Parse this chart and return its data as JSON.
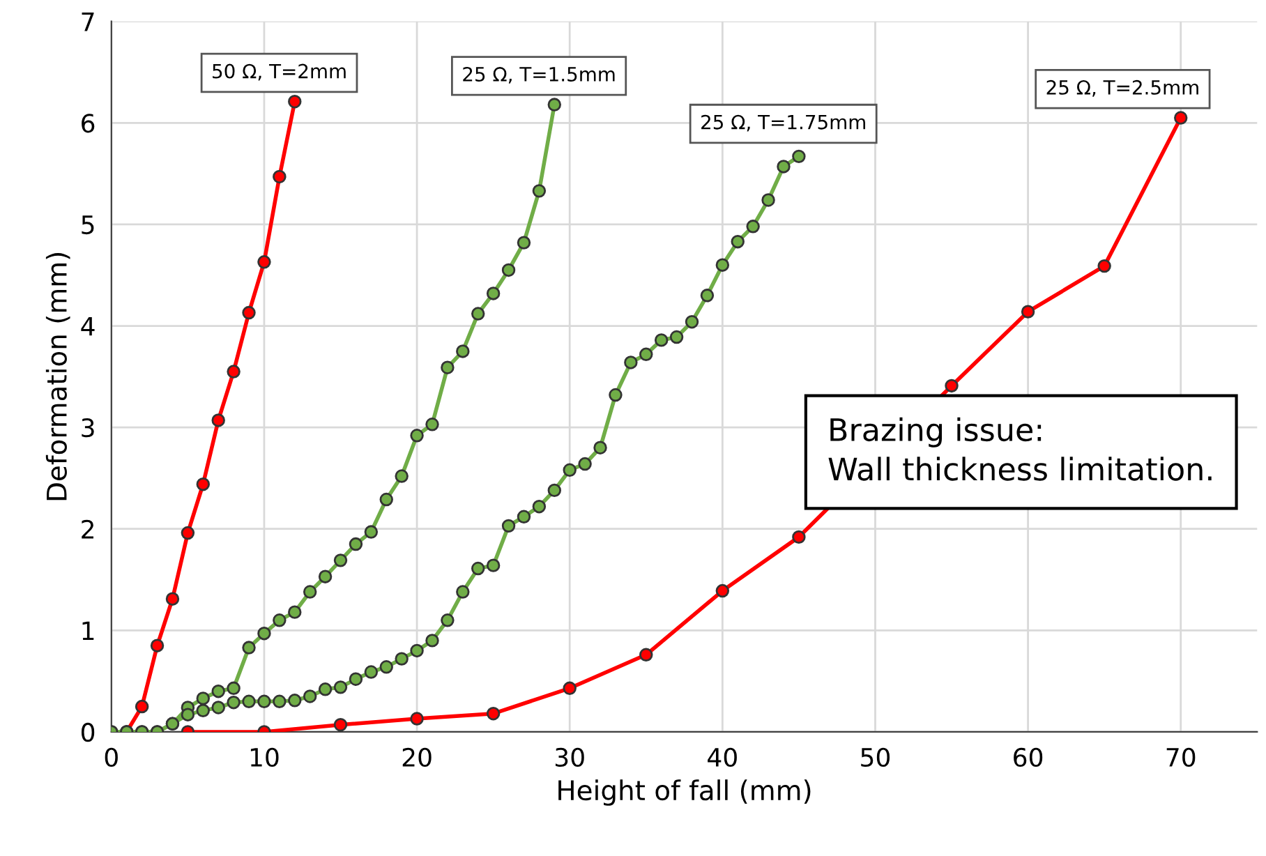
{
  "chart_data": {
    "type": "line",
    "xlabel": "Height of fall (mm)",
    "ylabel": "Deformation (mm)",
    "xlim": [
      0,
      75
    ],
    "ylim": [
      0,
      7
    ],
    "xticks": [
      0,
      10,
      20,
      30,
      40,
      50,
      60,
      70
    ],
    "yticks": [
      0,
      1,
      2,
      3,
      4,
      5,
      6,
      7
    ],
    "grid": true,
    "legend": false,
    "marker": "circle",
    "line_style": "solid",
    "series": [
      {
        "name": "50 Ω, T=2mm",
        "color": "#ff0000",
        "x": [
          1,
          2,
          3,
          4,
          5,
          6,
          7,
          8,
          9,
          10,
          11,
          12
        ],
        "values": [
          0,
          0.25,
          0.85,
          1.31,
          1.96,
          2.44,
          3.07,
          3.55,
          4.13,
          4.63,
          5.47,
          6.21
        ]
      },
      {
        "name": "25 Ω, T=1.5mm",
        "color": "#70ad47",
        "x": [
          0,
          1,
          2,
          3,
          4,
          5,
          6,
          7,
          8,
          9,
          10,
          11,
          12,
          13,
          14,
          15,
          16,
          17,
          18,
          19,
          20,
          21,
          22,
          23,
          24,
          25,
          26,
          27,
          28,
          29
        ],
        "values": [
          0,
          0,
          0,
          0,
          0.08,
          0.24,
          0.33,
          0.4,
          0.43,
          0.83,
          0.97,
          1.1,
          1.18,
          1.38,
          1.53,
          1.69,
          1.85,
          1.97,
          2.29,
          2.52,
          2.92,
          3.03,
          3.59,
          3.75,
          4.12,
          4.32,
          4.55,
          4.82,
          5.33,
          6.18
        ]
      },
      {
        "name": "25 Ω, T=1.75mm",
        "color": "#70ad47",
        "x": [
          0,
          1,
          2,
          3,
          4,
          5,
          6,
          7,
          8,
          9,
          10,
          11,
          12,
          13,
          14,
          15,
          16,
          17,
          18,
          19,
          20,
          21,
          22,
          23,
          24,
          25,
          26,
          27,
          28,
          29,
          30,
          31,
          32,
          33,
          34,
          35,
          36,
          37,
          38,
          39,
          40,
          41,
          42,
          43,
          44,
          45
        ],
        "values": [
          0,
          0,
          0,
          0,
          0.08,
          0.17,
          0.21,
          0.24,
          0.29,
          0.3,
          0.3,
          0.3,
          0.31,
          0.35,
          0.42,
          0.44,
          0.52,
          0.59,
          0.64,
          0.72,
          0.8,
          0.9,
          1.1,
          1.38,
          1.61,
          1.64,
          2.03,
          2.12,
          2.22,
          2.38,
          2.58,
          2.64,
          2.8,
          3.32,
          3.64,
          3.72,
          3.86,
          3.89,
          4.04,
          4.3,
          4.6,
          4.83,
          4.98,
          5.24,
          5.57,
          5.67
        ]
      },
      {
        "name": "25 Ω, T=2.5mm",
        "color": "#ff0000",
        "x": [
          5,
          10,
          15,
          20,
          25,
          30,
          35,
          40,
          45,
          55,
          60,
          65,
          70
        ],
        "values": [
          0,
          0,
          0.07,
          0.13,
          0.18,
          0.43,
          0.76,
          1.39,
          1.92,
          3.41,
          4.14,
          4.59,
          6.05
        ]
      }
    ],
    "annotations": [
      "Brazing issue:\nWall thickness limitation."
    ]
  }
}
